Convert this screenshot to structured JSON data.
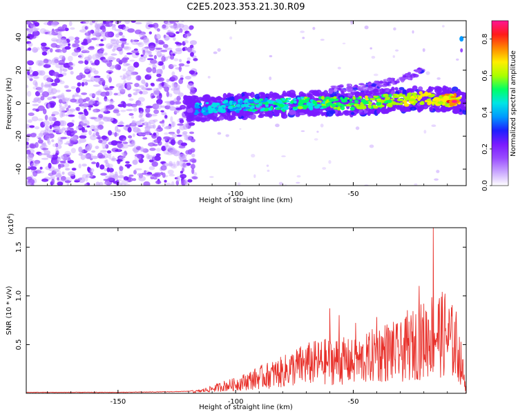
{
  "title": "C2E5.2023.353.21.30.R09",
  "colors": {
    "snr_line": "#e8302a",
    "axis": "#000000",
    "colormap": [
      "#ffffff",
      "#c9a6ff",
      "#9a4dff",
      "#7a1bff",
      "#1e1eff",
      "#0099ff",
      "#00e5e5",
      "#00ff66",
      "#aaff00",
      "#ffee00",
      "#ff8800",
      "#ff1a1a",
      "#ff1493"
    ]
  },
  "chart_data": [
    {
      "type": "heatmap",
      "name": "spectrogram",
      "xlabel": "Height of straight line (km)",
      "ylabel": "Frequency (Hz)",
      "xlim": [
        -189,
        -2
      ],
      "ylim": [
        -50,
        50
      ],
      "xticks": [
        -150,
        -100,
        -50
      ],
      "yticks": [
        -40,
        -20,
        0,
        20,
        40
      ],
      "ytick_labels": [
        "-40",
        "-20",
        "0",
        "20",
        "40"
      ],
      "colorbar": {
        "label": "Normalized spectral amplitude",
        "range": [
          0,
          0.9
        ],
        "ticks": [
          0.0,
          0.2,
          0.4,
          0.6,
          0.8
        ],
        "tick_labels": [
          "0.0",
          "0.2",
          "0.4",
          "0.6",
          "0.8"
        ]
      },
      "noise_region_x": [
        -189,
        -120
      ],
      "band_center_hz": [
        [
          -120,
          -3
        ],
        [
          -110,
          -3
        ],
        [
          -100,
          -2
        ],
        [
          -90,
          -1
        ],
        [
          -80,
          -1
        ],
        [
          -70,
          0
        ],
        [
          -60,
          0
        ],
        [
          -50,
          0
        ],
        [
          -40,
          1
        ],
        [
          -30,
          2
        ],
        [
          -20,
          3
        ],
        [
          -10,
          2
        ],
        [
          -4,
          1
        ]
      ],
      "secondary_band": [
        [
          -60,
          8
        ],
        [
          -45,
          10
        ],
        [
          -30,
          14
        ],
        [
          -20,
          20
        ]
      ],
      "peak_point": {
        "x": -7,
        "y": 1,
        "amplitude": 0.9
      }
    },
    {
      "type": "line",
      "name": "snr",
      "xlabel": "Height of straight line (km)",
      "ylabel": "SNR (10 * v/v)",
      "y_multiplier": "(x10",
      "y_multiplier_exp": "4",
      "y_multiplier_close": ")",
      "xlim": [
        -189,
        -2
      ],
      "ylim": [
        0,
        1.7
      ],
      "xticks": [
        -150,
        -100,
        -50
      ],
      "yticks": [
        0.5,
        1.0,
        1.5
      ],
      "ytick_labels": [
        "0.5",
        "1.0",
        "1.5"
      ],
      "envelope": [
        [
          -189,
          0.01
        ],
        [
          -150,
          0.01
        ],
        [
          -130,
          0.015
        ],
        [
          -120,
          0.02
        ],
        [
          -115,
          0.04
        ],
        [
          -110,
          0.08
        ],
        [
          -105,
          0.13
        ],
        [
          -100,
          0.16
        ],
        [
          -95,
          0.22
        ],
        [
          -90,
          0.28
        ],
        [
          -85,
          0.33
        ],
        [
          -80,
          0.38
        ],
        [
          -75,
          0.46
        ],
        [
          -70,
          0.52
        ],
        [
          -65,
          0.55
        ],
        [
          -60,
          0.57
        ],
        [
          -55,
          0.58
        ],
        [
          -50,
          0.55
        ],
        [
          -45,
          0.6
        ],
        [
          -40,
          0.7
        ],
        [
          -35,
          0.75
        ],
        [
          -30,
          0.72
        ],
        [
          -25,
          0.85
        ],
        [
          -20,
          0.95
        ],
        [
          -15,
          1.1
        ],
        [
          -10,
          1.0
        ],
        [
          -6,
          0.85
        ],
        [
          -4,
          0.5
        ],
        [
          -2,
          0.08
        ]
      ],
      "peaks": [
        {
          "x": -60,
          "y": 0.87
        },
        {
          "x": -56,
          "y": 0.8
        },
        {
          "x": -49,
          "y": 0.72
        },
        {
          "x": -40,
          "y": 0.78
        },
        {
          "x": -27,
          "y": 0.85
        },
        {
          "x": -22,
          "y": 1.1
        },
        {
          "x": -16,
          "y": 1.7
        },
        {
          "x": -11,
          "y": 1.02
        }
      ]
    }
  ]
}
